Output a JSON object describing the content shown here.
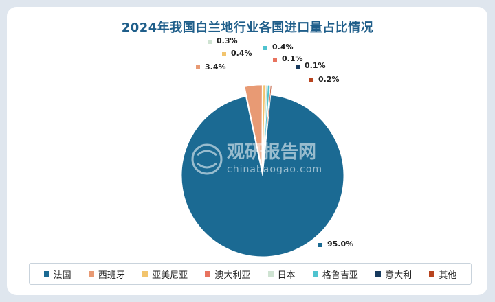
{
  "chart_data": {
    "type": "pie",
    "title": "2024年我国白兰地行业各国进口量占比情况",
    "unit": "%",
    "series": [
      {
        "name": "法国",
        "value": 95.0,
        "label": "95.0%",
        "color": "#1b6a93"
      },
      {
        "name": "西班牙",
        "value": 3.4,
        "label": "3.4%",
        "color": "#e89a74"
      },
      {
        "name": "亚美尼亚",
        "value": 0.4,
        "label": "0.4%",
        "color": "#f2c46d"
      },
      {
        "name": "澳大利亚",
        "value": 0.1,
        "label": "0.1%",
        "color": "#e8735f"
      },
      {
        "name": "日本",
        "value": 0.3,
        "label": "0.3%",
        "color": "#cfe3d2"
      },
      {
        "name": "格鲁吉亚",
        "value": 0.4,
        "label": "0.4%",
        "color": "#4fc3cf"
      },
      {
        "name": "意大利",
        "value": 0.1,
        "label": "0.1%",
        "color": "#173a5e"
      },
      {
        "name": "其他",
        "value": 0.2,
        "label": "0.2%",
        "color": "#b8441f"
      }
    ],
    "legend_position": "bottom"
  },
  "watermark": {
    "brand": "观研报告网",
    "site": "chinabaogao.com"
  }
}
